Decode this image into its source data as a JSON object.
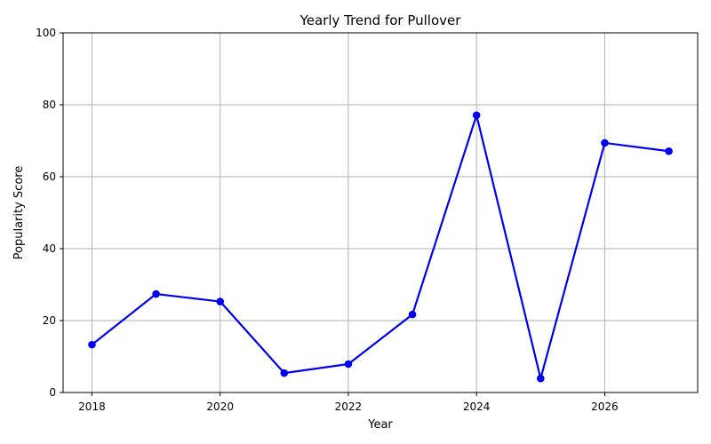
{
  "chart_data": {
    "type": "line",
    "title": "Yearly Trend for Pullover",
    "xlabel": "Year",
    "ylabel": "Popularity Score",
    "x": [
      2018,
      2019,
      2020,
      2021,
      2022,
      2023,
      2024,
      2025,
      2026,
      2027
    ],
    "series": [
      {
        "name": "",
        "values": [
          13.3,
          27.4,
          25.3,
          5.4,
          7.9,
          21.7,
          77.1,
          3.9,
          69.4,
          67.1
        ],
        "color": "#0000ee",
        "marker": "circle"
      }
    ],
    "xlim": [
      2017.55,
      2027.45
    ],
    "ylim": [
      0,
      100
    ],
    "xticks": [
      "2018",
      "2020",
      "2022",
      "2024",
      "2026"
    ],
    "yticks": [
      "0",
      "20",
      "40",
      "60",
      "80",
      "100"
    ],
    "grid": true,
    "legend": "none"
  }
}
